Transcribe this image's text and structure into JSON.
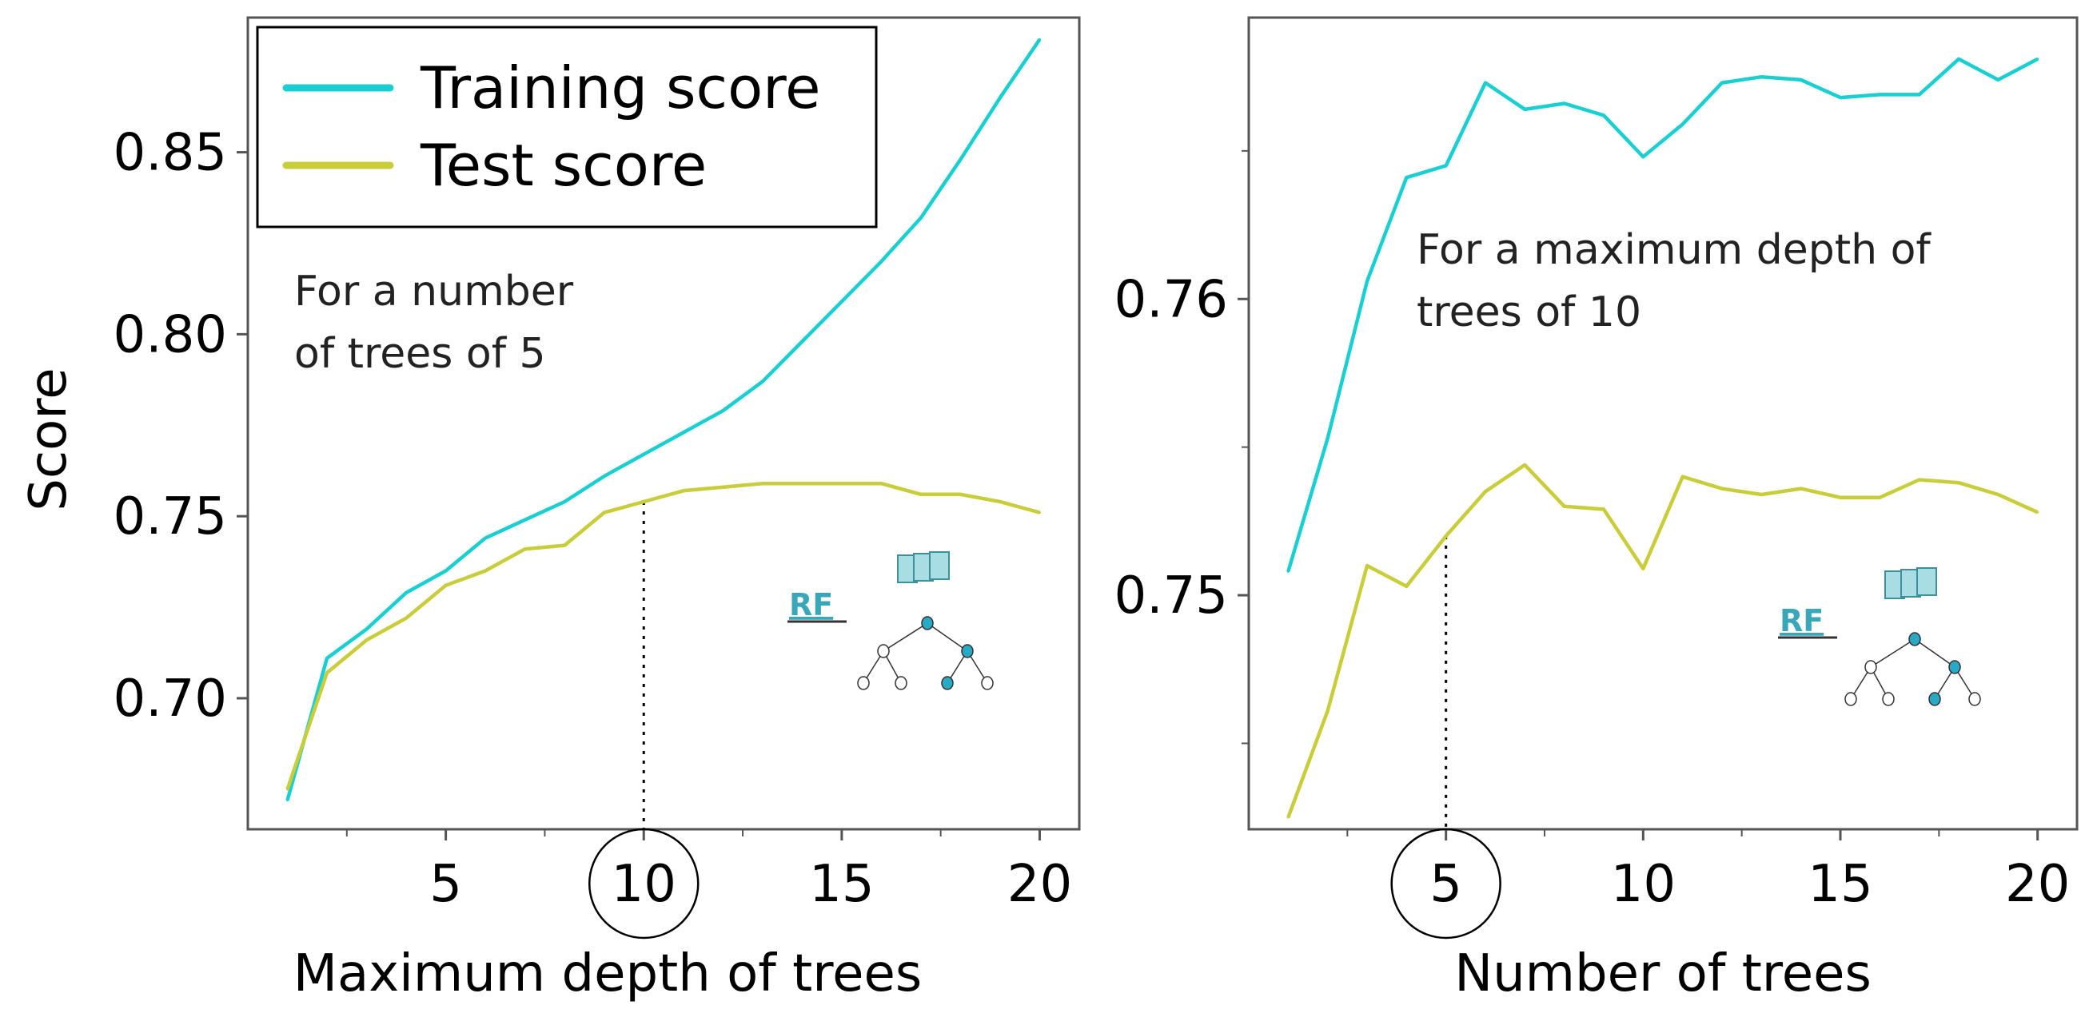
{
  "colors": {
    "training": "#19cfd2",
    "test": "#c9cd3a",
    "frame": "#555555"
  },
  "chart_data": [
    {
      "type": "line",
      "title": "",
      "xlabel": "Maximum depth of trees",
      "ylabel": "Score",
      "xlim": [
        0,
        21
      ],
      "ylim": [
        0.664,
        0.887
      ],
      "xticks": [
        5,
        10,
        15,
        20
      ],
      "xticks_minor": [
        2.5,
        7.5,
        12.5,
        17.5
      ],
      "yticks": [
        0.7,
        0.75,
        0.8,
        0.85
      ],
      "ytick_labels": [
        "0.70",
        "0.75",
        "0.80",
        "0.85"
      ],
      "yticks_minor": [],
      "highlight_x": 10,
      "highlight_label": "10",
      "annotation": [
        "For a number",
        "of trees of 5"
      ],
      "rf_label": "RF",
      "legend": {
        "location": "top-left",
        "entries": [
          "Training score",
          "Test score"
        ]
      },
      "x": [
        1,
        2,
        3,
        4,
        5,
        6,
        7,
        8,
        9,
        10,
        11,
        12,
        13,
        14,
        15,
        16,
        17,
        18,
        19,
        20
      ],
      "series": [
        {
          "name": "Training score",
          "color": "#19cfd2",
          "values": [
            0.672,
            0.711,
            0.719,
            0.729,
            0.735,
            0.744,
            0.749,
            0.754,
            0.761,
            0.767,
            0.773,
            0.779,
            0.787,
            0.798,
            0.809,
            0.82,
            0.832,
            0.848,
            0.865,
            0.881
          ]
        },
        {
          "name": "Test score",
          "color": "#c9cd3a",
          "values": [
            0.675,
            0.707,
            0.716,
            0.722,
            0.731,
            0.735,
            0.741,
            0.742,
            0.751,
            0.754,
            0.757,
            0.758,
            0.759,
            0.759,
            0.759,
            0.759,
            0.756,
            0.756,
            0.754,
            0.751
          ]
        }
      ]
    },
    {
      "type": "line",
      "title": "",
      "xlabel": "Number of trees",
      "ylabel": "",
      "xlim": [
        0,
        21
      ],
      "ylim": [
        0.7421,
        0.7695
      ],
      "xticks": [
        5,
        10,
        15,
        20
      ],
      "xticks_minor": [
        2.5,
        7.5,
        12.5,
        17.5
      ],
      "yticks": [
        0.75,
        0.76
      ],
      "ytick_labels": [
        "0.75",
        "0.76"
      ],
      "yticks_minor": [
        0.745,
        0.755,
        0.765
      ],
      "highlight_x": 5,
      "highlight_label": "5",
      "annotation": [
        "For a maximum depth of",
        "trees of 10"
      ],
      "rf_label": "RF",
      "legend": null,
      "x": [
        1,
        2,
        3,
        4,
        5,
        6,
        7,
        8,
        9,
        10,
        11,
        12,
        13,
        14,
        15,
        16,
        17,
        18,
        19,
        20
      ],
      "series": [
        {
          "name": "Training score",
          "color": "#19cfd2",
          "values": [
            0.7508,
            0.7553,
            0.7606,
            0.7641,
            0.7645,
            0.7673,
            0.7664,
            0.7666,
            0.7662,
            0.7648,
            0.7659,
            0.7673,
            0.7675,
            0.7674,
            0.7668,
            0.7669,
            0.7669,
            0.7681,
            0.7674,
            0.7681
          ]
        },
        {
          "name": "Test score",
          "color": "#c9cd3a",
          "values": [
            0.7425,
            0.7461,
            0.751,
            0.7503,
            0.752,
            0.7535,
            0.7544,
            0.753,
            0.7529,
            0.7509,
            0.754,
            0.7536,
            0.7534,
            0.7536,
            0.7533,
            0.7533,
            0.7539,
            0.7538,
            0.7534,
            0.7528
          ]
        }
      ]
    }
  ]
}
